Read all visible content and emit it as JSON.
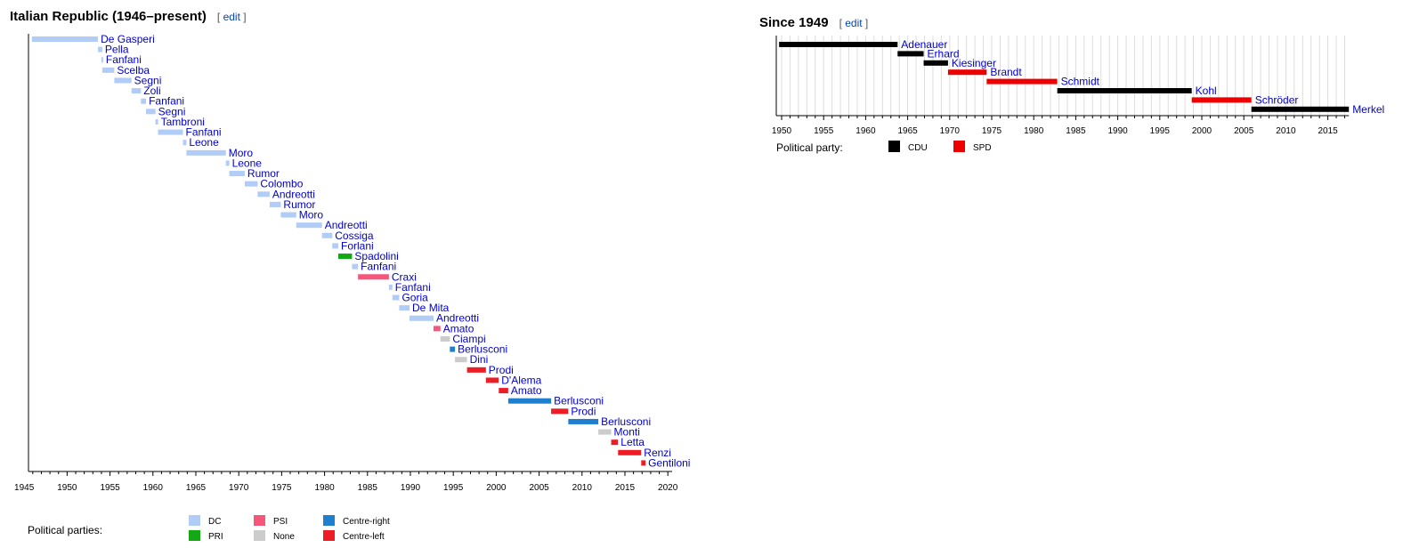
{
  "sections": [
    {
      "title": "Italian Republic (1946–present)",
      "edit": "edit"
    },
    {
      "title": "Since 1949",
      "edit": "edit"
    }
  ],
  "colors": {
    "DC": "#b0ccf7",
    "PRI": "#14a814",
    "PSI": "#f5567a",
    "None": "#cccccc",
    "Centre-right": "#1f7fcf",
    "Centre-left": "#ee1c25",
    "CDU": "#000000",
    "SPD": "#ee0000"
  },
  "chart_data": [
    {
      "type": "timeline",
      "title": "Italian Republic (1946–present)",
      "xlim": [
        1945.5,
        2020.5
      ],
      "xticks": [
        1945,
        1950,
        1955,
        1960,
        1965,
        1970,
        1975,
        1980,
        1985,
        1990,
        1995,
        2000,
        2005,
        2010,
        2015,
        2020
      ],
      "legend_title": "Political parties:",
      "legend": [
        "DC",
        "PRI",
        "PSI",
        "None",
        "Centre-right",
        "Centre-left"
      ],
      "bars": [
        {
          "name": "De Gasperi",
          "start": 1945.9,
          "end": 1953.6,
          "party": "DC"
        },
        {
          "name": "Pella",
          "start": 1953.6,
          "end": 1954.1,
          "party": "DC"
        },
        {
          "name": "Fanfani",
          "start": 1954.0,
          "end": 1954.2,
          "party": "DC"
        },
        {
          "name": "Scelba",
          "start": 1954.1,
          "end": 1955.5,
          "party": "DC"
        },
        {
          "name": "Segni",
          "start": 1955.5,
          "end": 1957.5,
          "party": "DC"
        },
        {
          "name": "Zoli",
          "start": 1957.5,
          "end": 1958.6,
          "party": "DC"
        },
        {
          "name": "Fanfani",
          "start": 1958.6,
          "end": 1959.2,
          "party": "DC"
        },
        {
          "name": "Segni",
          "start": 1959.2,
          "end": 1960.3,
          "party": "DC"
        },
        {
          "name": "Tambroni",
          "start": 1960.3,
          "end": 1960.6,
          "party": "DC"
        },
        {
          "name": "Fanfani",
          "start": 1960.6,
          "end": 1963.5,
          "party": "DC"
        },
        {
          "name": "Leone",
          "start": 1963.5,
          "end": 1963.9,
          "party": "DC"
        },
        {
          "name": "Moro",
          "start": 1963.9,
          "end": 1968.5,
          "party": "DC"
        },
        {
          "name": "Leone",
          "start": 1968.5,
          "end": 1968.9,
          "party": "DC"
        },
        {
          "name": "Rumor",
          "start": 1968.9,
          "end": 1970.7,
          "party": "DC"
        },
        {
          "name": "Colombo",
          "start": 1970.7,
          "end": 1972.2,
          "party": "DC"
        },
        {
          "name": "Andreotti",
          "start": 1972.2,
          "end": 1973.6,
          "party": "DC"
        },
        {
          "name": "Rumor",
          "start": 1973.6,
          "end": 1974.9,
          "party": "DC"
        },
        {
          "name": "Moro",
          "start": 1974.9,
          "end": 1976.7,
          "party": "DC"
        },
        {
          "name": "Andreotti",
          "start": 1976.7,
          "end": 1979.7,
          "party": "DC"
        },
        {
          "name": "Cossiga",
          "start": 1979.7,
          "end": 1980.9,
          "party": "DC"
        },
        {
          "name": "Forlani",
          "start": 1980.9,
          "end": 1981.6,
          "party": "DC"
        },
        {
          "name": "Spadolini",
          "start": 1981.6,
          "end": 1983.2,
          "party": "PRI"
        },
        {
          "name": "Fanfani",
          "start": 1983.2,
          "end": 1983.9,
          "party": "DC"
        },
        {
          "name": "Craxi",
          "start": 1983.9,
          "end": 1987.5,
          "party": "PSI"
        },
        {
          "name": "Fanfani",
          "start": 1987.5,
          "end": 1987.9,
          "party": "DC"
        },
        {
          "name": "Goria",
          "start": 1987.9,
          "end": 1988.7,
          "party": "DC"
        },
        {
          "name": "De Mita",
          "start": 1988.7,
          "end": 1989.9,
          "party": "DC"
        },
        {
          "name": "Andreotti",
          "start": 1989.9,
          "end": 1992.7,
          "party": "DC"
        },
        {
          "name": "Amato",
          "start": 1992.7,
          "end": 1993.5,
          "party": "PSI"
        },
        {
          "name": "Ciampi",
          "start": 1993.5,
          "end": 1994.6,
          "party": "None"
        },
        {
          "name": "Berlusconi",
          "start": 1994.6,
          "end": 1995.2,
          "party": "Centre-right"
        },
        {
          "name": "Dini",
          "start": 1995.2,
          "end": 1996.6,
          "party": "None"
        },
        {
          "name": "Prodi",
          "start": 1996.6,
          "end": 1998.8,
          "party": "Centre-left"
        },
        {
          "name": "D'Alema",
          "start": 1998.8,
          "end": 2000.3,
          "party": "Centre-left"
        },
        {
          "name": "Amato",
          "start": 2000.3,
          "end": 2001.4,
          "party": "Centre-left"
        },
        {
          "name": "Berlusconi",
          "start": 2001.4,
          "end": 2006.4,
          "party": "Centre-right"
        },
        {
          "name": "Prodi",
          "start": 2006.4,
          "end": 2008.4,
          "party": "Centre-left"
        },
        {
          "name": "Berlusconi",
          "start": 2008.4,
          "end": 2011.9,
          "party": "Centre-right"
        },
        {
          "name": "Monti",
          "start": 2011.9,
          "end": 2013.4,
          "party": "None"
        },
        {
          "name": "Letta",
          "start": 2013.4,
          "end": 2014.2,
          "party": "Centre-left"
        },
        {
          "name": "Renzi",
          "start": 2014.2,
          "end": 2016.9,
          "party": "Centre-left"
        },
        {
          "name": "Gentiloni",
          "start": 2016.9,
          "end": 2017.4,
          "party": "Centre-left"
        }
      ]
    },
    {
      "type": "timeline",
      "title": "Since 1949",
      "xlim": [
        1949.5,
        2017.5
      ],
      "xticks": [
        1950,
        1955,
        1960,
        1965,
        1970,
        1975,
        1980,
        1985,
        1990,
        1995,
        2000,
        2005,
        2010,
        2015
      ],
      "legend_title": "Political party:",
      "legend": [
        "CDU",
        "SPD"
      ],
      "bars": [
        {
          "name": "Adenauer",
          "start": 1949.7,
          "end": 1963.8,
          "party": "CDU"
        },
        {
          "name": "Erhard",
          "start": 1963.8,
          "end": 1966.9,
          "party": "CDU"
        },
        {
          "name": "Kiesinger",
          "start": 1966.9,
          "end": 1969.8,
          "party": "CDU"
        },
        {
          "name": "Brandt",
          "start": 1969.8,
          "end": 1974.4,
          "party": "SPD"
        },
        {
          "name": "Schmidt",
          "start": 1974.4,
          "end": 1982.8,
          "party": "SPD"
        },
        {
          "name": "Kohl",
          "start": 1982.8,
          "end": 1998.8,
          "party": "CDU"
        },
        {
          "name": "Schröder",
          "start": 1998.8,
          "end": 2005.9,
          "party": "SPD"
        },
        {
          "name": "Merkel",
          "start": 2005.9,
          "end": 2017.5,
          "party": "CDU"
        }
      ]
    }
  ]
}
